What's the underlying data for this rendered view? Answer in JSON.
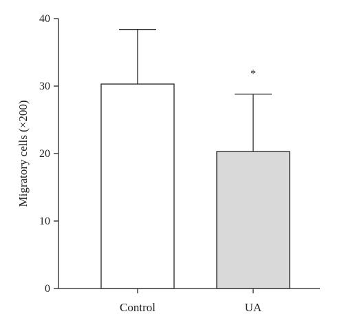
{
  "chart_data": {
    "type": "bar",
    "categories": [
      "Control",
      "UA"
    ],
    "values": [
      30.3,
      20.3
    ],
    "error_upper": [
      8.1,
      8.5
    ],
    "bar_colors": [
      "#ffffff",
      "#d9d9d9"
    ],
    "annotations": [
      "",
      "*"
    ],
    "ylabel": "Migratory cells (×200)",
    "xlabel": "",
    "title": "",
    "ylim": [
      0,
      40
    ],
    "yticks": [
      0,
      10,
      20,
      30,
      40
    ],
    "ytick_labels": [
      "0",
      "10",
      "20",
      "30",
      "40"
    ],
    "grid": false,
    "legend": "none"
  }
}
